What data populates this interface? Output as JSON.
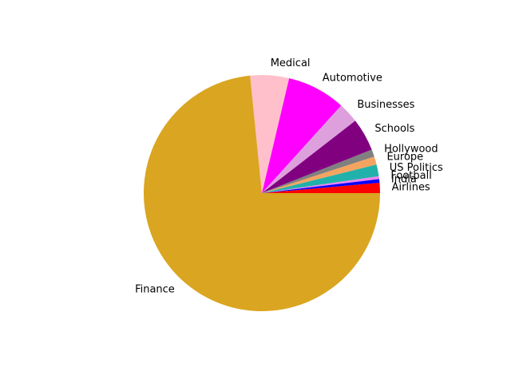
{
  "chart_data": {
    "type": "pie",
    "title": "",
    "categories": [
      "Airlines",
      "India",
      "Football",
      "US Politics",
      "Europe",
      "Hollywood",
      "Schools",
      "Businesses",
      "Automotive",
      "Medical",
      "Finance"
    ],
    "values": [
      1.4,
      0.5,
      0.4,
      1.6,
      1.1,
      1.0,
      4.5,
      2.8,
      8.0,
      5.3,
      73.4
    ],
    "colors": [
      "#ff0000",
      "#0000ff",
      "#ee82ee",
      "#20b2aa",
      "#f4a460",
      "#808080",
      "#800080",
      "#dda0dd",
      "#ff00ff",
      "#ffc0cb",
      "#daa520"
    ],
    "start_angle_deg": 0,
    "direction": "counterclockwise",
    "legend": "none"
  }
}
